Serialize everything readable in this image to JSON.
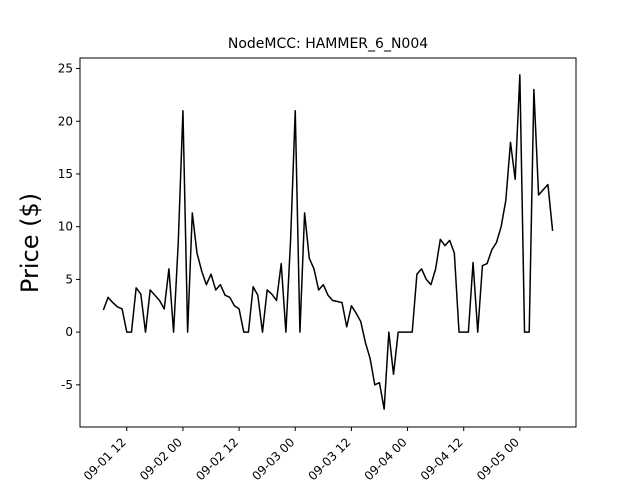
{
  "chart_data": {
    "type": "line",
    "title": "NodeMCC: HAMMER_6_N004",
    "y_label": "Price ($)",
    "x": [
      "09-01 07",
      "09-01 08",
      "09-01 09",
      "09-01 10",
      "09-01 11",
      "09-01 12",
      "09-01 13",
      "09-01 14",
      "09-01 15",
      "09-01 16",
      "09-01 17",
      "09-01 18",
      "09-01 19",
      "09-01 20",
      "09-01 21",
      "09-01 22",
      "09-01 23",
      "09-02 00",
      "09-02 01",
      "09-02 02",
      "09-02 03",
      "09-02 04",
      "09-02 05",
      "09-02 06",
      "09-02 07",
      "09-02 08",
      "09-02 09",
      "09-02 10",
      "09-02 11",
      "09-02 12",
      "09-02 13",
      "09-02 14",
      "09-02 15",
      "09-02 16",
      "09-02 17",
      "09-02 18",
      "09-02 19",
      "09-02 20",
      "09-02 21",
      "09-02 22",
      "09-02 23",
      "09-03 00",
      "09-03 01",
      "09-03 02",
      "09-03 03",
      "09-03 04",
      "09-03 05",
      "09-03 06",
      "09-03 07",
      "09-03 08",
      "09-03 09",
      "09-03 10",
      "09-03 11",
      "09-03 12",
      "09-03 13",
      "09-03 14",
      "09-03 15",
      "09-03 16",
      "09-03 17",
      "09-03 18",
      "09-03 19",
      "09-03 20",
      "09-03 21",
      "09-03 22",
      "09-03 23",
      "09-04 00",
      "09-04 01",
      "09-04 02",
      "09-04 03",
      "09-04 04",
      "09-04 05",
      "09-04 06",
      "09-04 07",
      "09-04 08",
      "09-04 09",
      "09-04 10",
      "09-04 11",
      "09-04 12",
      "09-04 13",
      "09-04 14",
      "09-04 15",
      "09-04 16",
      "09-04 17",
      "09-04 18",
      "09-04 19",
      "09-04 20",
      "09-04 21",
      "09-04 22",
      "09-04 23",
      "09-05 00",
      "09-05 01",
      "09-05 02",
      "09-05 03",
      "09-05 04",
      "09-05 05",
      "09-05 06",
      "09-05 07"
    ],
    "series": [
      {
        "color": "#000000",
        "values": [
          2.1,
          3.3,
          2.8,
          2.4,
          2.2,
          0,
          0,
          4.2,
          3.6,
          0,
          4.0,
          3.5,
          3.0,
          2.2,
          6.0,
          0,
          8.5,
          21.0,
          0,
          11.3,
          7.5,
          5.8,
          4.5,
          5.5,
          4.0,
          4.5,
          3.5,
          3.3,
          2.5,
          2.2,
          0,
          0,
          4.3,
          3.5,
          0,
          4.0,
          3.6,
          3.0,
          6.5,
          0,
          8.7,
          21.0,
          0,
          11.3,
          7.0,
          6.0,
          4.0,
          4.5,
          3.5,
          3.0,
          2.9,
          2.8,
          0.5,
          2.5,
          1.8,
          1.0,
          -1.0,
          -2.5,
          -5.0,
          -4.8,
          -7.3,
          0,
          -4.0,
          0,
          0,
          0,
          0,
          5.5,
          6.0,
          5.0,
          4.5,
          6.0,
          8.8,
          8.2,
          8.7,
          7.5,
          0,
          0,
          0,
          6.6,
          0,
          6.3,
          6.5,
          7.8,
          8.5,
          10.0,
          12.5,
          18.0,
          14.5,
          24.4,
          0,
          0,
          23.0,
          13.0,
          13.5,
          14.0,
          9.6
        ]
      }
    ],
    "xlim": [
      "09-01 02",
      "09-05 12"
    ],
    "xticks": [
      "09-01 12",
      "09-02 00",
      "09-02 12",
      "09-03 00",
      "09-03 12",
      "09-04 00",
      "09-04 12",
      "09-05 00"
    ],
    "ylim": [
      -9,
      26
    ],
    "yticks": [
      -5,
      0,
      5,
      10,
      15,
      20,
      25
    ]
  }
}
